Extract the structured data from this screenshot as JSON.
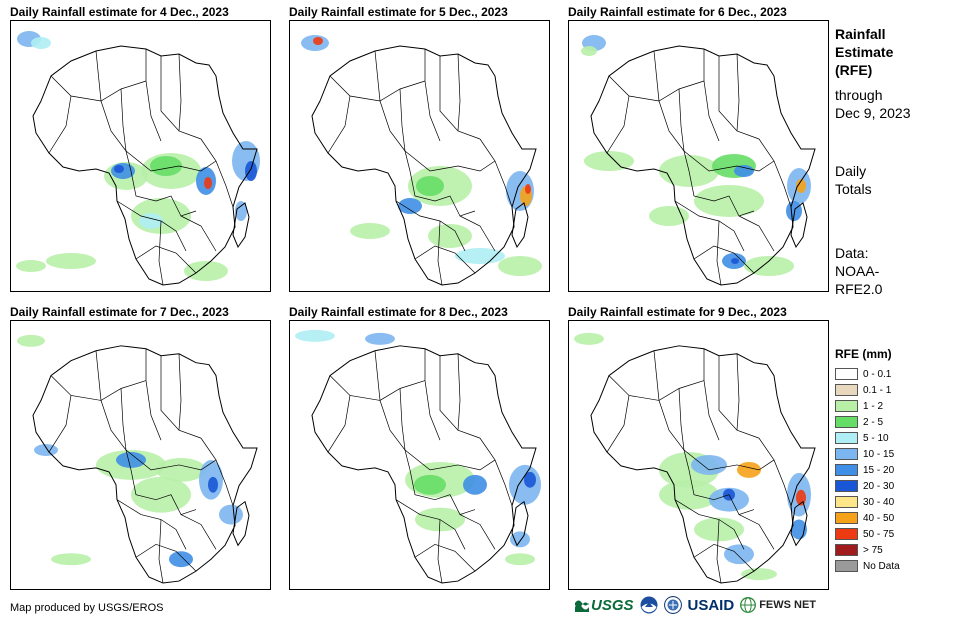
{
  "panels": [
    {
      "title": "Daily Rainfall estimate for 4 Dec., 2023"
    },
    {
      "title": "Daily Rainfall estimate for 5 Dec., 2023"
    },
    {
      "title": "Daily Rainfall estimate for 6 Dec., 2023"
    },
    {
      "title": "Daily Rainfall estimate for 7 Dec., 2023"
    },
    {
      "title": "Daily Rainfall estimate for 8 Dec., 2023"
    },
    {
      "title": "Daily Rainfall estimate for 9 Dec., 2023"
    }
  ],
  "sidebar": {
    "title_1": "Rainfall",
    "title_2": "Estimate",
    "title_3": "(RFE)",
    "through_1": "through",
    "through_2": "Dec 9, 2023",
    "totals_1": "Daily",
    "totals_2": "Totals",
    "data_1": "Data:",
    "data_2": "NOAA-",
    "data_3": "RFE2.0"
  },
  "legend": {
    "title": "RFE (mm)",
    "items": [
      {
        "label": "0 - 0.1",
        "color": "#ffffff"
      },
      {
        "label": "0.1 - 1",
        "color": "#e8d9be"
      },
      {
        "label": "1 - 2",
        "color": "#b8f0a8"
      },
      {
        "label": "2 - 5",
        "color": "#66dd66"
      },
      {
        "label": "5 - 10",
        "color": "#aeeef4"
      },
      {
        "label": "10 - 15",
        "color": "#7cb6f0"
      },
      {
        "label": "15 - 20",
        "color": "#3f8fe6"
      },
      {
        "label": "20 - 30",
        "color": "#1a57d6"
      },
      {
        "label": "30 - 40",
        "color": "#fde58a"
      },
      {
        "label": "40 - 50",
        "color": "#f5a21a"
      },
      {
        "label": "50 - 75",
        "color": "#ee3a12"
      },
      {
        "label": "> 75",
        "color": "#a01c1c"
      },
      {
        "label": "No Data",
        "color": "#9a9a9a"
      }
    ]
  },
  "footer": {
    "credit": "Map produced by USGS/EROS",
    "usgs": "USGS",
    "usaid": "USAID",
    "fews": "FEWS NET"
  }
}
